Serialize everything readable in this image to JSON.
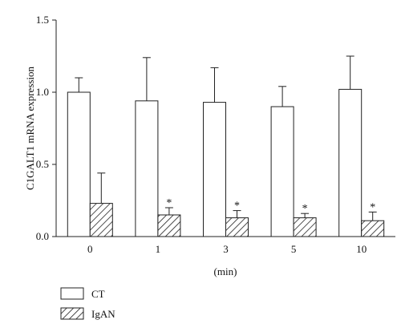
{
  "chart_data": {
    "type": "bar",
    "categories": [
      "0",
      "1",
      "3",
      "5",
      "10"
    ],
    "xlabel": "(min)",
    "ylabel": "C1GALT1 mRNA expression",
    "ylim": [
      0,
      1.5
    ],
    "yticks": [
      "0.0",
      "0.5",
      "1.0",
      "1.5"
    ],
    "grid": false,
    "legend_position": "bottom-left",
    "series": [
      {
        "name": "CT",
        "pattern": "open",
        "values": [
          1.0,
          0.94,
          0.93,
          0.9,
          1.02
        ],
        "error": [
          0.1,
          0.3,
          0.24,
          0.14,
          0.23
        ],
        "significance": [
          "",
          "",
          "",
          "",
          ""
        ]
      },
      {
        "name": "IgAN",
        "pattern": "hatched",
        "values": [
          0.23,
          0.15,
          0.13,
          0.13,
          0.11
        ],
        "error": [
          0.21,
          0.05,
          0.05,
          0.03,
          0.06
        ],
        "significance": [
          "",
          "*",
          "*",
          "*",
          "*"
        ]
      }
    ]
  }
}
